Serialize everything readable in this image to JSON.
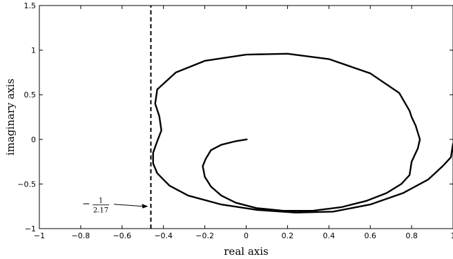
{
  "chart_data": {
    "type": "line",
    "title": "",
    "xlabel": "real axis",
    "ylabel": "imaginary axis",
    "xlim": [
      -1,
      1
    ],
    "ylim": [
      -1,
      1.5
    ],
    "x_ticks": [
      -1,
      -0.8,
      -0.6,
      -0.4,
      -0.2,
      0,
      0.2,
      0.4,
      0.6,
      0.8,
      1
    ],
    "x_tick_labels": [
      "−1",
      "−0.8",
      "−0.6",
      "−0.4",
      "−0.2",
      "0",
      "0.2",
      "0.4",
      "0.6",
      "0.8",
      "1"
    ],
    "y_ticks": [
      -1,
      -0.5,
      0,
      0.5,
      1,
      1.5
    ],
    "y_tick_labels": [
      "−1",
      "−0.5",
      "0",
      "0.5",
      "1",
      "1.5"
    ],
    "grid": false,
    "series": [
      {
        "style": "solid",
        "color": "#000000",
        "points": [
          [
            0.003,
            0.0
          ],
          [
            -0.05,
            -0.02
          ],
          [
            -0.12,
            -0.06
          ],
          [
            -0.17,
            -0.12
          ],
          [
            -0.196,
            -0.22
          ],
          [
            -0.21,
            -0.3
          ],
          [
            -0.2,
            -0.42
          ],
          [
            -0.17,
            -0.53
          ],
          [
            -0.12,
            -0.63
          ],
          [
            -0.05,
            -0.71
          ],
          [
            0.05,
            -0.77
          ],
          [
            0.18,
            -0.8
          ],
          [
            0.32,
            -0.8
          ],
          [
            0.46,
            -0.76
          ],
          [
            0.58,
            -0.69
          ],
          [
            0.68,
            -0.6
          ],
          [
            0.75,
            -0.5
          ],
          [
            0.79,
            -0.4
          ],
          [
            0.8,
            -0.25
          ],
          [
            0.83,
            -0.1
          ],
          [
            0.84,
            0.0
          ],
          [
            0.82,
            0.15
          ],
          [
            0.8,
            0.25
          ],
          [
            0.79,
            0.32
          ],
          [
            0.74,
            0.52
          ],
          [
            0.6,
            0.74
          ],
          [
            0.4,
            0.9
          ],
          [
            0.2,
            0.96
          ],
          [
            0.0,
            0.95
          ],
          [
            -0.2,
            0.88
          ],
          [
            -0.34,
            0.75
          ],
          [
            -0.43,
            0.56
          ],
          [
            -0.44,
            0.4
          ],
          [
            -0.42,
            0.26
          ],
          [
            -0.41,
            0.1
          ],
          [
            -0.43,
            -0.02
          ],
          [
            -0.45,
            -0.15
          ],
          [
            -0.45,
            -0.27
          ],
          [
            -0.43,
            -0.38
          ],
          [
            -0.37,
            -0.52
          ],
          [
            -0.28,
            -0.63
          ],
          [
            -0.12,
            -0.73
          ],
          [
            0.05,
            -0.79
          ],
          [
            0.24,
            -0.82
          ],
          [
            0.42,
            -0.81
          ],
          [
            0.6,
            -0.73
          ],
          [
            0.76,
            -0.6
          ],
          [
            0.88,
            -0.45
          ],
          [
            0.95,
            -0.3
          ],
          [
            0.99,
            -0.2
          ],
          [
            1.0,
            -0.05
          ]
        ]
      },
      {
        "style": "dashed",
        "color": "#000000",
        "points": [
          [
            -0.4608,
            -1
          ],
          [
            -0.4608,
            1.5
          ]
        ]
      }
    ],
    "annotations": [
      {
        "text_numerator": "1",
        "text_denominator": "2.17",
        "text_sign": "−",
        "arrow_to": [
          -0.4608,
          -0.75
        ]
      }
    ]
  }
}
